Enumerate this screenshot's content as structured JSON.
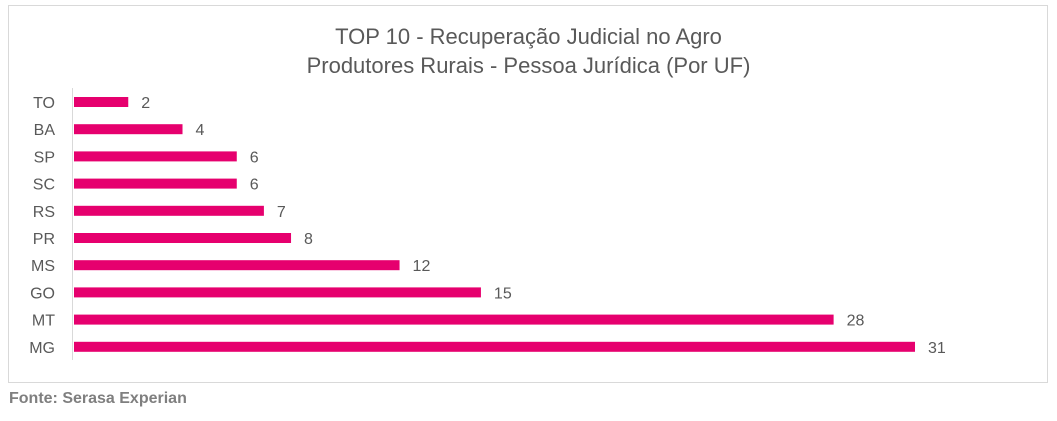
{
  "chart_data": {
    "type": "bar",
    "orientation": "horizontal",
    "title": "TOP 10 - Recuperação Judicial no Agro",
    "subtitle": "Produtores Rurais - Pessoa Jurídica (Por UF)",
    "categories": [
      "TO",
      "BA",
      "SP",
      "SC",
      "RS",
      "PR",
      "MS",
      "GO",
      "MT",
      "MG"
    ],
    "values": [
      2,
      4,
      6,
      6,
      7,
      8,
      12,
      15,
      28,
      31
    ],
    "xlim": [
      0,
      31
    ],
    "grid": false,
    "data_labels": true,
    "bar_color": "#E6006E"
  },
  "source": "Fonte: Serasa Experian"
}
